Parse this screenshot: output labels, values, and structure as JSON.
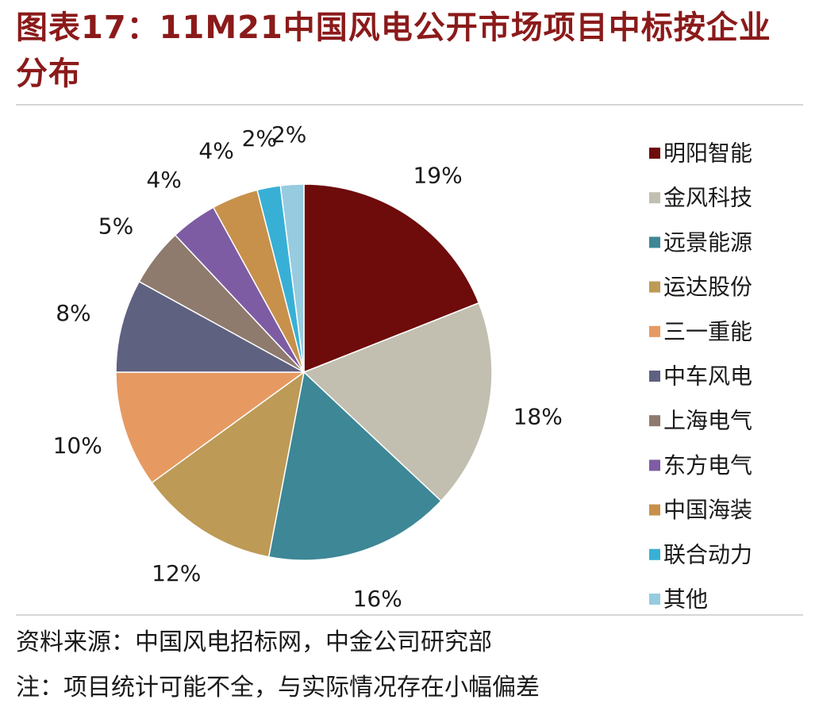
{
  "title": "图表17：11M21中国风电公开市场项目中标按企业分布",
  "chart_data": {
    "type": "pie",
    "title": "图表17：11M21中国风电公开市场项目中标按企业分布",
    "categories": [
      "明阳智能",
      "金风科技",
      "远景能源",
      "运达股份",
      "三一重能",
      "中车风电",
      "上海电气",
      "东方电气",
      "中国海装",
      "联合动力",
      "其他"
    ],
    "values": [
      19,
      18,
      16,
      12,
      10,
      8,
      5,
      4,
      4,
      2,
      2
    ],
    "data_labels": [
      "19%",
      "18%",
      "16%",
      "12%",
      "10%",
      "8%",
      "5%",
      "4%",
      "4%",
      "2%",
      "2%"
    ],
    "colors": [
      "#6e0b0b",
      "#c2bfb0",
      "#3d8796",
      "#bd9a56",
      "#e69a62",
      "#5f6180",
      "#8f7a6e",
      "#7d5ca3",
      "#c7914b",
      "#38b0d6",
      "#97cbe0"
    ],
    "legend": "right",
    "start": "12 o'clock, clockwise"
  },
  "footer": {
    "source": "资料来源：中国风电招标网，中金公司研究部",
    "note": "注：项目统计可能不全，与实际情况存在小幅偏差"
  }
}
